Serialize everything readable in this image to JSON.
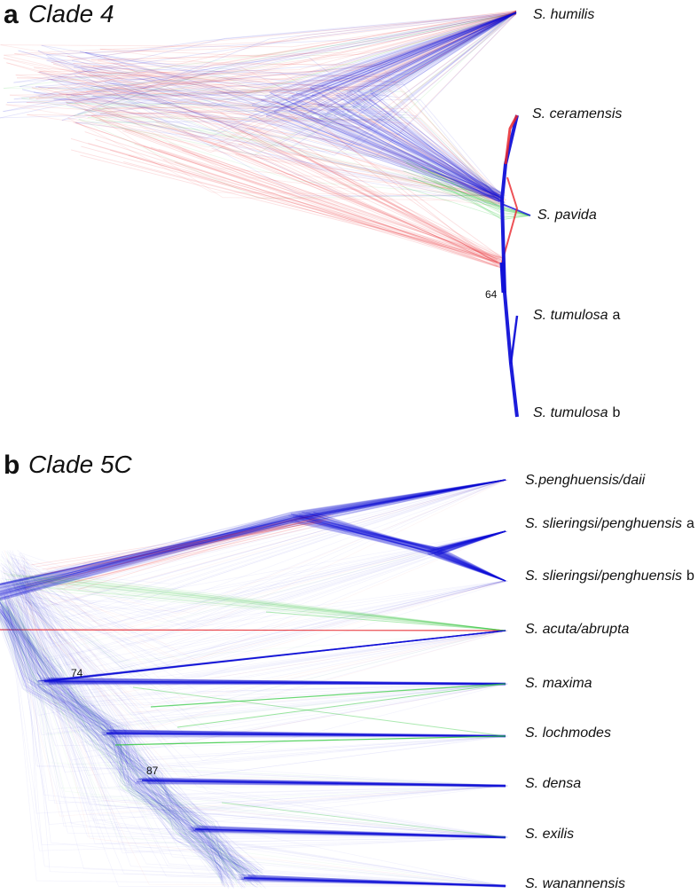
{
  "panel_a": {
    "letter": "a",
    "title": "Clade 4",
    "taxa": [
      {
        "name": "S. humilis",
        "suffix": ""
      },
      {
        "name": "S. ceramensis",
        "suffix": ""
      },
      {
        "name": "S. pavida",
        "suffix": ""
      },
      {
        "name": "S. tumulosa",
        "suffix": "a"
      },
      {
        "name": "S. tumulosa",
        "suffix": "b"
      }
    ],
    "support_values": [
      "64"
    ]
  },
  "panel_b": {
    "letter": "b",
    "title": "Clade 5C",
    "taxa": [
      {
        "name": "S.penghuensis/daii",
        "suffix": ""
      },
      {
        "name": "S. slieringsi/penghuensis",
        "suffix": "a"
      },
      {
        "name": "S. slieringsi/penghuensis",
        "suffix": "b"
      },
      {
        "name": "S. acuta/abrupta",
        "suffix": ""
      },
      {
        "name": "S. maxima",
        "suffix": ""
      },
      {
        "name": "S. lochmodes",
        "suffix": ""
      },
      {
        "name": "S. densa",
        "suffix": ""
      },
      {
        "name": "S. exilis",
        "suffix": ""
      },
      {
        "name": "S. wanannensis",
        "suffix": ""
      }
    ],
    "support_values": [
      "74",
      "87"
    ]
  },
  "colors": {
    "consensus": "#1010d8",
    "conflict_red": "#e8262c",
    "conflict_green": "#2ec93a"
  }
}
